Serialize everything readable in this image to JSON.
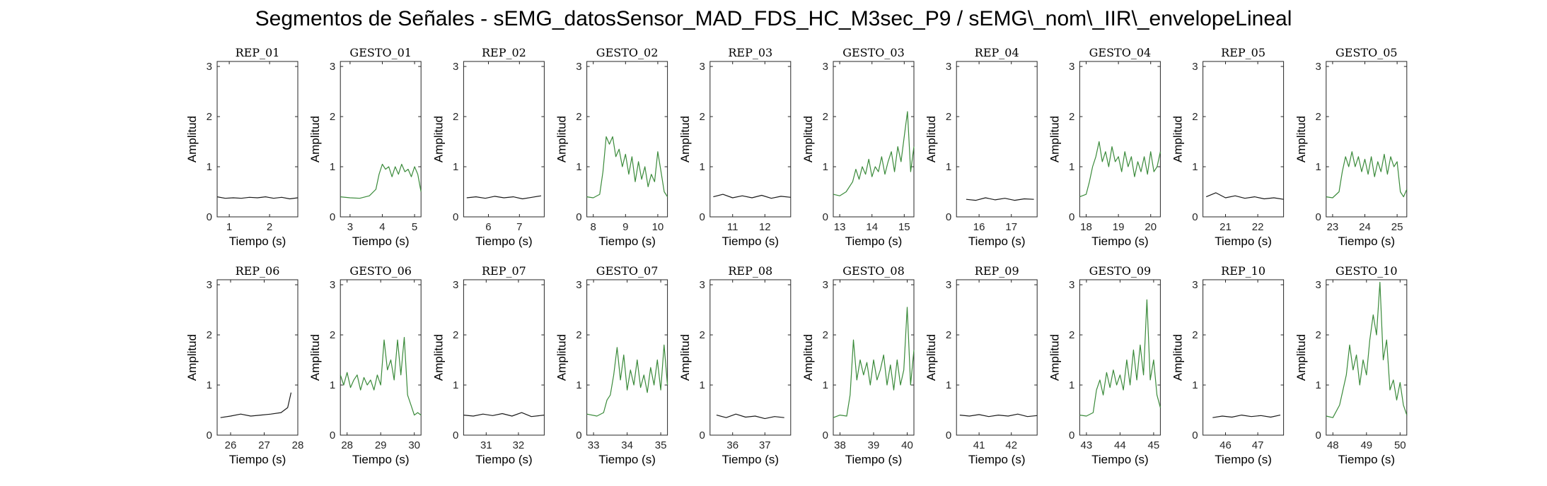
{
  "figure": {
    "title": "Segmentos de Señales - sEMG_datosSensor_MAD_FDS_HC_M3sec_P9 / sEMG\\_nom\\_IIR\\_envelopeLineal"
  },
  "colors": {
    "rep": "#1a1a1a",
    "gesto": "#3a8a3a",
    "axis": "#262626"
  },
  "chart_data": [
    {
      "type": "line",
      "title": "REP_01",
      "xlabel": "Tiempo (s)",
      "ylabel": "Amplitud",
      "xlim": [
        0.7,
        2.7
      ],
      "ylim": [
        0,
        3.1
      ],
      "xticks": [
        1,
        2
      ],
      "yticks": [
        0,
        1,
        2,
        3
      ],
      "color": "rep",
      "x": [
        0.7,
        0.9,
        1.1,
        1.3,
        1.5,
        1.7,
        1.9,
        2.1,
        2.3,
        2.5,
        2.7
      ],
      "y": [
        0.4,
        0.37,
        0.38,
        0.37,
        0.39,
        0.38,
        0.4,
        0.37,
        0.39,
        0.36,
        0.38
      ]
    },
    {
      "type": "line",
      "title": "GESTO_01",
      "xlabel": "Tiempo (s)",
      "ylabel": "Amplitud",
      "xlim": [
        2.7,
        5.2
      ],
      "ylim": [
        0,
        3.1
      ],
      "xticks": [
        3,
        4,
        5
      ],
      "yticks": [
        0,
        1,
        2,
        3
      ],
      "color": "gesto",
      "x": [
        2.7,
        3.0,
        3.3,
        3.6,
        3.8,
        3.9,
        4.0,
        4.1,
        4.2,
        4.3,
        4.4,
        4.5,
        4.6,
        4.7,
        4.8,
        4.9,
        5.0,
        5.1,
        5.2
      ],
      "y": [
        0.4,
        0.38,
        0.37,
        0.42,
        0.55,
        0.85,
        1.05,
        0.95,
        1.0,
        0.8,
        1.0,
        0.85,
        1.05,
        0.9,
        0.95,
        0.8,
        1.0,
        0.85,
        0.5
      ]
    },
    {
      "type": "line",
      "title": "REP_02",
      "xlabel": "Tiempo (s)",
      "ylabel": "Amplitud",
      "xlim": [
        5.2,
        7.8
      ],
      "ylim": [
        0,
        3.1
      ],
      "xticks": [
        6,
        7,
        8
      ],
      "yticks": [
        0,
        1,
        2,
        3
      ],
      "color": "rep",
      "x": [
        5.3,
        5.6,
        5.9,
        6.2,
        6.5,
        6.8,
        7.1,
        7.4,
        7.7
      ],
      "y": [
        0.38,
        0.4,
        0.37,
        0.41,
        0.38,
        0.4,
        0.36,
        0.39,
        0.42
      ]
    },
    {
      "type": "line",
      "title": "GESTO_02",
      "xlabel": "Tiempo (s)",
      "ylabel": "Amplitud",
      "xlim": [
        7.8,
        10.3
      ],
      "ylim": [
        0,
        3.1
      ],
      "xticks": [
        8,
        9,
        10
      ],
      "yticks": [
        0,
        1,
        2,
        3
      ],
      "color": "gesto",
      "x": [
        7.8,
        8.0,
        8.2,
        8.3,
        8.4,
        8.5,
        8.6,
        8.7,
        8.8,
        8.9,
        9.0,
        9.1,
        9.2,
        9.3,
        9.4,
        9.5,
        9.6,
        9.7,
        9.8,
        9.9,
        10.0,
        10.1,
        10.2,
        10.3
      ],
      "y": [
        0.4,
        0.38,
        0.45,
        0.9,
        1.6,
        1.45,
        1.6,
        1.2,
        1.35,
        1.0,
        1.25,
        0.85,
        1.2,
        0.7,
        1.1,
        0.75,
        1.0,
        0.6,
        0.85,
        0.7,
        1.3,
        0.9,
        0.5,
        0.4
      ]
    },
    {
      "type": "line",
      "title": "REP_03",
      "xlabel": "Tiempo (s)",
      "ylabel": "Amplitud",
      "xlim": [
        10.3,
        12.8
      ],
      "ylim": [
        0,
        3.1
      ],
      "xticks": [
        11,
        12
      ],
      "yticks": [
        0,
        1,
        2,
        3
      ],
      "color": "rep",
      "x": [
        10.4,
        10.7,
        11.0,
        11.3,
        11.6,
        11.9,
        12.2,
        12.5,
        12.8
      ],
      "y": [
        0.4,
        0.45,
        0.38,
        0.42,
        0.38,
        0.43,
        0.37,
        0.41,
        0.39
      ]
    },
    {
      "type": "line",
      "title": "GESTO_03",
      "xlabel": "Tiempo (s)",
      "ylabel": "Amplitud",
      "xlim": [
        12.8,
        15.3
      ],
      "ylim": [
        0,
        3.1
      ],
      "xticks": [
        13,
        14,
        15
      ],
      "yticks": [
        0,
        1,
        2,
        3
      ],
      "color": "gesto",
      "x": [
        12.8,
        13.0,
        13.2,
        13.4,
        13.5,
        13.6,
        13.7,
        13.8,
        13.9,
        14.0,
        14.1,
        14.2,
        14.3,
        14.4,
        14.5,
        14.6,
        14.7,
        14.8,
        14.9,
        15.0,
        15.1,
        15.2,
        15.3
      ],
      "y": [
        0.45,
        0.42,
        0.5,
        0.7,
        0.95,
        0.75,
        1.0,
        0.85,
        1.15,
        0.8,
        1.0,
        0.9,
        1.2,
        0.85,
        1.1,
        1.3,
        0.9,
        1.4,
        1.1,
        1.6,
        2.1,
        0.9,
        1.4
      ]
    },
    {
      "type": "line",
      "title": "REP_04",
      "xlabel": "Tiempo (s)",
      "ylabel": "Amplitud",
      "xlim": [
        15.3,
        17.8
      ],
      "ylim": [
        0,
        3.1
      ],
      "xticks": [
        16,
        17,
        18
      ],
      "yticks": [
        0,
        1,
        2,
        3
      ],
      "color": "rep",
      "x": [
        15.6,
        15.9,
        16.2,
        16.5,
        16.8,
        17.1,
        17.4,
        17.7
      ],
      "y": [
        0.35,
        0.33,
        0.38,
        0.34,
        0.37,
        0.33,
        0.36,
        0.35
      ]
    },
    {
      "type": "line",
      "title": "GESTO_04",
      "xlabel": "Tiempo (s)",
      "ylabel": "Amplitud",
      "xlim": [
        17.8,
        20.3
      ],
      "ylim": [
        0,
        3.1
      ],
      "xticks": [
        18,
        19,
        20
      ],
      "yticks": [
        0,
        1,
        2,
        3
      ],
      "color": "gesto",
      "x": [
        17.8,
        18.0,
        18.1,
        18.2,
        18.3,
        18.4,
        18.5,
        18.6,
        18.7,
        18.8,
        18.9,
        19.0,
        19.1,
        19.2,
        19.3,
        19.4,
        19.5,
        19.6,
        19.7,
        19.8,
        19.9,
        20.0,
        20.1,
        20.2,
        20.3
      ],
      "y": [
        0.4,
        0.45,
        0.7,
        1.0,
        1.2,
        1.5,
        1.1,
        1.3,
        1.0,
        1.4,
        1.1,
        1.2,
        0.9,
        1.3,
        1.0,
        1.2,
        0.8,
        1.1,
        0.9,
        1.2,
        0.85,
        1.3,
        0.9,
        1.0,
        1.3
      ]
    },
    {
      "type": "line",
      "title": "REP_05",
      "xlabel": "Tiempo (s)",
      "ylabel": "Amplitud",
      "xlim": [
        20.3,
        22.8
      ],
      "ylim": [
        0,
        3.1
      ],
      "xticks": [
        21,
        22
      ],
      "yticks": [
        0,
        1,
        2,
        3
      ],
      "color": "rep",
      "x": [
        20.4,
        20.7,
        21.0,
        21.3,
        21.6,
        21.9,
        22.2,
        22.5,
        22.8
      ],
      "y": [
        0.4,
        0.48,
        0.38,
        0.42,
        0.37,
        0.4,
        0.36,
        0.38,
        0.35
      ]
    },
    {
      "type": "line",
      "title": "GESTO_05",
      "xlabel": "Tiempo (s)",
      "ylabel": "Amplitud",
      "xlim": [
        22.8,
        25.3
      ],
      "ylim": [
        0,
        3.1
      ],
      "xticks": [
        23,
        24,
        25
      ],
      "yticks": [
        0,
        1,
        2,
        3
      ],
      "color": "gesto",
      "x": [
        22.8,
        23.0,
        23.2,
        23.3,
        23.4,
        23.5,
        23.6,
        23.7,
        23.8,
        23.9,
        24.0,
        24.1,
        24.2,
        24.3,
        24.4,
        24.5,
        24.6,
        24.7,
        24.8,
        24.9,
        25.0,
        25.1,
        25.2,
        25.3
      ],
      "y": [
        0.4,
        0.38,
        0.5,
        0.9,
        1.2,
        1.0,
        1.3,
        1.0,
        1.2,
        0.9,
        1.15,
        0.85,
        1.2,
        0.8,
        1.1,
        0.9,
        1.25,
        0.85,
        1.2,
        1.0,
        1.1,
        0.5,
        0.4,
        0.55
      ]
    },
    {
      "type": "line",
      "title": "REP_06",
      "xlabel": "Tiempo (s)",
      "ylabel": "Amplitud",
      "xlim": [
        25.6,
        28.0
      ],
      "ylim": [
        0,
        3.1
      ],
      "xticks": [
        26,
        27,
        28
      ],
      "yticks": [
        0,
        1,
        2,
        3
      ],
      "color": "rep",
      "x": [
        25.7,
        26.0,
        26.3,
        26.6,
        26.9,
        27.2,
        27.5,
        27.7,
        27.8
      ],
      "y": [
        0.35,
        0.38,
        0.42,
        0.38,
        0.4,
        0.42,
        0.45,
        0.55,
        0.85
      ]
    },
    {
      "type": "line",
      "title": "GESTO_06",
      "xlabel": "Tiempo (s)",
      "ylabel": "Amplitud",
      "xlim": [
        27.8,
        30.2
      ],
      "ylim": [
        0,
        3.1
      ],
      "xticks": [
        28,
        29,
        30
      ],
      "yticks": [
        0,
        1,
        2,
        3
      ],
      "color": "gesto",
      "x": [
        27.8,
        27.9,
        28.0,
        28.1,
        28.2,
        28.3,
        28.4,
        28.5,
        28.6,
        28.7,
        28.8,
        28.9,
        29.0,
        29.1,
        29.2,
        29.3,
        29.4,
        29.5,
        29.6,
        29.7,
        29.8,
        29.9,
        30.0,
        30.1,
        30.2
      ],
      "y": [
        1.2,
        1.0,
        1.25,
        0.95,
        1.1,
        1.2,
        0.9,
        1.15,
        1.0,
        1.1,
        0.9,
        1.2,
        1.0,
        1.9,
        1.3,
        1.5,
        1.1,
        1.9,
        1.2,
        1.95,
        0.8,
        0.6,
        0.4,
        0.45,
        0.4
      ]
    },
    {
      "type": "line",
      "title": "REP_07",
      "xlabel": "Tiempo (s)",
      "ylabel": "Amplitud",
      "xlim": [
        30.3,
        32.8
      ],
      "ylim": [
        0,
        3.1
      ],
      "xticks": [
        31,
        32
      ],
      "yticks": [
        0,
        1,
        2,
        3
      ],
      "color": "rep",
      "x": [
        30.3,
        30.6,
        30.9,
        31.2,
        31.5,
        31.8,
        32.1,
        32.4,
        32.8
      ],
      "y": [
        0.4,
        0.38,
        0.42,
        0.39,
        0.43,
        0.38,
        0.45,
        0.37,
        0.4
      ]
    },
    {
      "type": "line",
      "title": "GESTO_07",
      "xlabel": "Tiempo (s)",
      "ylabel": "Amplitud",
      "xlim": [
        32.8,
        35.2
      ],
      "ylim": [
        0,
        3.1
      ],
      "xticks": [
        33,
        34,
        35
      ],
      "yticks": [
        0,
        1,
        2,
        3
      ],
      "color": "gesto",
      "x": [
        32.8,
        33.1,
        33.3,
        33.4,
        33.5,
        33.6,
        33.7,
        33.8,
        33.9,
        34.0,
        34.1,
        34.2,
        34.3,
        34.4,
        34.5,
        34.6,
        34.7,
        34.8,
        34.9,
        35.0,
        35.1,
        35.2
      ],
      "y": [
        0.42,
        0.38,
        0.45,
        0.7,
        0.8,
        1.2,
        1.75,
        1.1,
        1.6,
        0.9,
        1.3,
        1.0,
        1.5,
        0.95,
        1.2,
        0.85,
        1.35,
        1.0,
        1.5,
        0.9,
        1.8,
        1.0
      ]
    },
    {
      "type": "line",
      "title": "REP_08",
      "xlabel": "Tiempo (s)",
      "ylabel": "Amplitud",
      "xlim": [
        35.3,
        37.8
      ],
      "ylim": [
        0,
        3.1
      ],
      "xticks": [
        36,
        37,
        38
      ],
      "yticks": [
        0,
        1,
        2,
        3
      ],
      "color": "rep",
      "x": [
        35.5,
        35.8,
        36.1,
        36.4,
        36.7,
        37.0,
        37.3,
        37.6
      ],
      "y": [
        0.4,
        0.35,
        0.42,
        0.36,
        0.38,
        0.33,
        0.37,
        0.35
      ]
    },
    {
      "type": "line",
      "title": "GESTO_08",
      "xlabel": "Tiempo (s)",
      "ylabel": "Amplitud",
      "xlim": [
        37.8,
        40.2
      ],
      "ylim": [
        0,
        3.1
      ],
      "xticks": [
        38,
        39,
        40
      ],
      "yticks": [
        0,
        1,
        2,
        3
      ],
      "color": "gesto",
      "x": [
        37.8,
        38.0,
        38.2,
        38.3,
        38.4,
        38.5,
        38.6,
        38.7,
        38.8,
        38.9,
        39.0,
        39.1,
        39.2,
        39.3,
        39.4,
        39.5,
        39.6,
        39.7,
        39.8,
        39.9,
        40.0,
        40.1,
        40.2
      ],
      "y": [
        0.35,
        0.4,
        0.38,
        0.8,
        1.9,
        1.1,
        1.5,
        1.2,
        1.45,
        1.0,
        1.5,
        1.1,
        1.3,
        1.6,
        1.0,
        1.4,
        0.9,
        1.5,
        1.0,
        1.3,
        2.55,
        1.0,
        1.7
      ]
    },
    {
      "type": "line",
      "title": "REP_09",
      "xlabel": "Tiempo (s)",
      "ylabel": "Amplitud",
      "xlim": [
        40.3,
        42.8
      ],
      "ylim": [
        0,
        3.1
      ],
      "xticks": [
        41,
        42
      ],
      "yticks": [
        0,
        1,
        2,
        3
      ],
      "color": "rep",
      "x": [
        40.4,
        40.7,
        41.0,
        41.3,
        41.6,
        41.9,
        42.2,
        42.5,
        42.8
      ],
      "y": [
        0.4,
        0.38,
        0.41,
        0.37,
        0.4,
        0.38,
        0.42,
        0.37,
        0.39
      ]
    },
    {
      "type": "line",
      "title": "GESTO_09",
      "xlabel": "Tiempo (s)",
      "ylabel": "Amplitud",
      "xlim": [
        42.8,
        45.2
      ],
      "ylim": [
        0,
        3.1
      ],
      "xticks": [
        43,
        44,
        45
      ],
      "yticks": [
        0,
        1,
        2,
        3
      ],
      "color": "gesto",
      "x": [
        42.8,
        43.0,
        43.2,
        43.3,
        43.4,
        43.5,
        43.6,
        43.7,
        43.8,
        43.9,
        44.0,
        44.1,
        44.2,
        44.3,
        44.4,
        44.5,
        44.6,
        44.7,
        44.8,
        44.9,
        45.0,
        45.1,
        45.2
      ],
      "y": [
        0.4,
        0.38,
        0.45,
        0.9,
        1.1,
        0.8,
        1.25,
        0.95,
        1.3,
        1.0,
        1.2,
        0.9,
        1.5,
        1.0,
        1.7,
        1.1,
        1.8,
        1.2,
        2.7,
        1.1,
        1.5,
        0.8,
        0.55
      ]
    },
    {
      "type": "line",
      "title": "REP_10",
      "xlabel": "Tiempo (s)",
      "ylabel": "Amplitud",
      "xlim": [
        45.3,
        47.8
      ],
      "ylim": [
        0,
        3.1
      ],
      "xticks": [
        46,
        47,
        48
      ],
      "yticks": [
        0,
        1,
        2,
        3
      ],
      "color": "rep",
      "x": [
        45.6,
        45.9,
        46.2,
        46.5,
        46.8,
        47.1,
        47.4,
        47.7
      ],
      "y": [
        0.35,
        0.38,
        0.36,
        0.4,
        0.37,
        0.39,
        0.36,
        0.4
      ]
    },
    {
      "type": "line",
      "title": "GESTO_10",
      "xlabel": "Tiempo (s)",
      "ylabel": "Amplitud",
      "xlim": [
        47.8,
        50.2
      ],
      "ylim": [
        0,
        3.1
      ],
      "xticks": [
        48,
        49,
        50
      ],
      "yticks": [
        0,
        1,
        2,
        3
      ],
      "color": "gesto",
      "x": [
        47.8,
        48.0,
        48.2,
        48.4,
        48.5,
        48.6,
        48.7,
        48.8,
        48.9,
        49.0,
        49.1,
        49.2,
        49.3,
        49.4,
        49.5,
        49.6,
        49.7,
        49.8,
        49.9,
        50.0,
        50.1,
        50.2
      ],
      "y": [
        0.38,
        0.35,
        0.6,
        1.2,
        1.8,
        1.3,
        1.6,
        1.0,
        1.5,
        1.2,
        1.9,
        2.4,
        2.0,
        3.05,
        1.5,
        1.9,
        0.9,
        1.1,
        0.7,
        1.05,
        0.6,
        0.4
      ]
    }
  ]
}
